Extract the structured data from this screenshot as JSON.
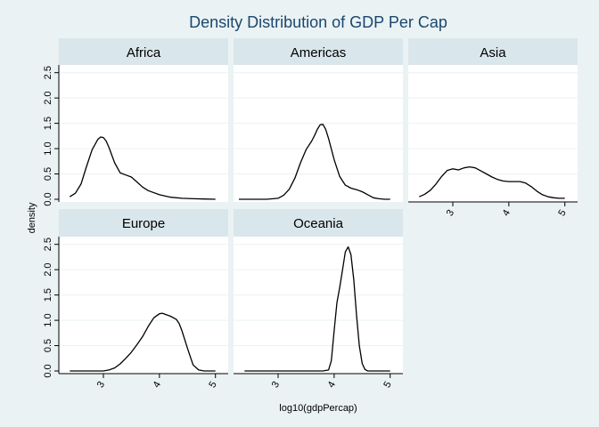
{
  "chart_data": {
    "type": "line",
    "title": "Density Distribution of GDP Per Cap",
    "xlabel": "log10(gdpPercap)",
    "ylabel": "density",
    "xlim": [
      2.3,
      5.1
    ],
    "ylim": [
      0,
      2.6
    ],
    "xticks": [
      "3",
      "4",
      "5"
    ],
    "yticks": [
      "0.0",
      "0.5",
      "1.0",
      "1.5",
      "2.0",
      "2.5"
    ],
    "grid": true,
    "panels": [
      {
        "name": "Africa",
        "x": [
          2.4,
          2.5,
          2.6,
          2.7,
          2.8,
          2.9,
          2.95,
          3.0,
          3.05,
          3.1,
          3.2,
          3.3,
          3.4,
          3.5,
          3.6,
          3.7,
          3.8,
          4.0,
          4.2,
          4.4,
          4.6,
          4.8,
          5.0
        ],
        "y": [
          0.05,
          0.12,
          0.3,
          0.65,
          0.98,
          1.18,
          1.23,
          1.22,
          1.15,
          1.02,
          0.72,
          0.52,
          0.48,
          0.44,
          0.34,
          0.24,
          0.17,
          0.09,
          0.04,
          0.02,
          0.01,
          0.005,
          0.0
        ]
      },
      {
        "name": "Americas",
        "x": [
          2.3,
          2.6,
          2.8,
          3.0,
          3.1,
          3.2,
          3.3,
          3.4,
          3.5,
          3.6,
          3.65,
          3.7,
          3.75,
          3.8,
          3.85,
          3.9,
          4.0,
          4.1,
          4.2,
          4.3,
          4.4,
          4.5,
          4.6,
          4.7,
          4.8,
          4.9,
          5.0
        ],
        "y": [
          0.0,
          0.0,
          0.0,
          0.02,
          0.08,
          0.2,
          0.42,
          0.72,
          0.98,
          1.15,
          1.26,
          1.38,
          1.47,
          1.48,
          1.38,
          1.2,
          0.78,
          0.45,
          0.28,
          0.22,
          0.19,
          0.15,
          0.09,
          0.03,
          0.01,
          0.0,
          0.0
        ]
      },
      {
        "name": "Asia",
        "x": [
          2.4,
          2.5,
          2.6,
          2.7,
          2.8,
          2.9,
          3.0,
          3.1,
          3.2,
          3.3,
          3.4,
          3.5,
          3.6,
          3.7,
          3.8,
          3.9,
          4.0,
          4.1,
          4.2,
          4.3,
          4.4,
          4.5,
          4.6,
          4.7,
          4.8,
          4.9,
          5.0
        ],
        "y": [
          0.05,
          0.1,
          0.18,
          0.3,
          0.45,
          0.57,
          0.6,
          0.58,
          0.62,
          0.64,
          0.62,
          0.56,
          0.5,
          0.44,
          0.39,
          0.36,
          0.35,
          0.35,
          0.35,
          0.32,
          0.25,
          0.16,
          0.09,
          0.05,
          0.03,
          0.02,
          0.02
        ]
      },
      {
        "name": "Europe",
        "x": [
          2.4,
          2.6,
          2.8,
          3.0,
          3.1,
          3.2,
          3.3,
          3.4,
          3.5,
          3.6,
          3.7,
          3.8,
          3.9,
          4.0,
          4.05,
          4.1,
          4.2,
          4.3,
          4.35,
          4.4,
          4.5,
          4.6,
          4.7,
          4.8,
          4.9,
          5.0
        ],
        "y": [
          0.0,
          0.0,
          0.0,
          0.0,
          0.02,
          0.06,
          0.14,
          0.25,
          0.37,
          0.52,
          0.68,
          0.88,
          1.05,
          1.13,
          1.14,
          1.12,
          1.08,
          1.02,
          0.94,
          0.8,
          0.45,
          0.12,
          0.02,
          0.0,
          0.0,
          0.0
        ]
      },
      {
        "name": "Oceania",
        "x": [
          2.4,
          3.0,
          3.5,
          3.8,
          3.9,
          3.95,
          4.0,
          4.05,
          4.1,
          4.15,
          4.2,
          4.25,
          4.3,
          4.35,
          4.4,
          4.45,
          4.5,
          4.55,
          4.6,
          4.7,
          4.8,
          5.0
        ],
        "y": [
          0.0,
          0.0,
          0.0,
          0.0,
          0.02,
          0.2,
          0.8,
          1.35,
          1.65,
          2.0,
          2.35,
          2.45,
          2.3,
          1.8,
          1.1,
          0.5,
          0.15,
          0.03,
          0.0,
          0.0,
          0.0,
          0.0
        ]
      }
    ]
  }
}
